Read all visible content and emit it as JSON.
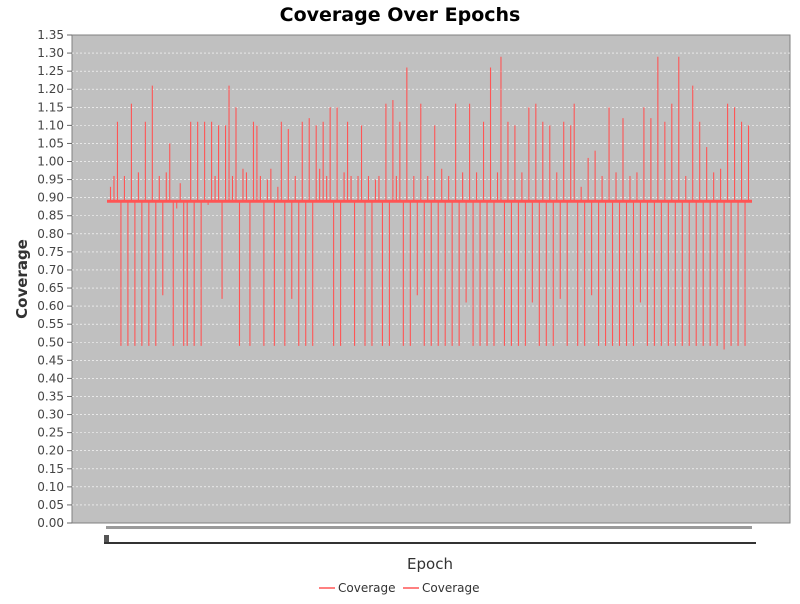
{
  "chart_data": {
    "type": "line",
    "title": "Coverage Over Epochs",
    "xlabel": "Epoch",
    "ylabel": "Coverage",
    "ylim": [
      0.0,
      1.35
    ],
    "ytick_step": 0.05,
    "grid": true,
    "legend_position": "bottom-center",
    "series": [
      {
        "name": "Coverage",
        "color": "#ff5555"
      },
      {
        "name": "Coverage",
        "color": "#ff5555"
      }
    ],
    "baseline": 0.89,
    "spikes": [
      0.93,
      0.96,
      1.11,
      0.49,
      0.96,
      0.49,
      1.16,
      0.49,
      0.97,
      0.49,
      1.11,
      0.49,
      1.21,
      0.49,
      0.96,
      0.63,
      0.97,
      1.05,
      0.49,
      0.87,
      0.94,
      0.49,
      0.49,
      1.11,
      0.49,
      1.11,
      0.49,
      1.11,
      0.88,
      1.11,
      0.96,
      1.1,
      0.62,
      1.1,
      1.21,
      0.96,
      1.15,
      0.49,
      0.98,
      0.97,
      0.49,
      1.11,
      1.1,
      0.96,
      0.49,
      0.95,
      0.98,
      0.49,
      0.93,
      1.11,
      0.49,
      1.09,
      0.62,
      0.96,
      0.49,
      1.11,
      0.49,
      1.12,
      0.49,
      1.1,
      0.98,
      1.11,
      0.96,
      1.15,
      0.49,
      1.15,
      0.49,
      0.97,
      1.11,
      0.96,
      0.49,
      0.96,
      1.1,
      0.49,
      0.96,
      0.49,
      0.95,
      0.96,
      0.49,
      1.16,
      0.49,
      1.17,
      0.96,
      1.11,
      0.49,
      1.26,
      0.49,
      0.96,
      0.63,
      1.16,
      0.49,
      0.96,
      0.49,
      1.1,
      0.49,
      0.98,
      0.49,
      0.96,
      0.49,
      1.16,
      0.49,
      0.97,
      0.61,
      1.16,
      0.49,
      0.97,
      0.49,
      1.11,
      0.49,
      1.26,
      0.49,
      0.97,
      1.29,
      0.49,
      1.11,
      0.49,
      1.1,
      0.49,
      0.97,
      0.49,
      1.15,
      0.61,
      1.16,
      0.49,
      1.11,
      0.49,
      1.1,
      0.49,
      0.97,
      0.62,
      1.11,
      0.49,
      1.1,
      1.16,
      0.49,
      0.93,
      0.49,
      1.01,
      0.63,
      1.03,
      0.49,
      0.96,
      0.49,
      1.15,
      0.49,
      0.97,
      0.49,
      1.12,
      0.49,
      0.96,
      0.49,
      0.97,
      0.61,
      1.15,
      0.49,
      1.12,
      0.49,
      1.29,
      0.49,
      1.11,
      0.49,
      1.16,
      0.49,
      1.29,
      0.49,
      0.96,
      0.49,
      1.21,
      0.49,
      1.11,
      0.49,
      1.04,
      0.49,
      0.97,
      0.49,
      0.98,
      0.48,
      1.16,
      0.49,
      1.15,
      0.49,
      1.11,
      0.49,
      1.1
    ]
  }
}
